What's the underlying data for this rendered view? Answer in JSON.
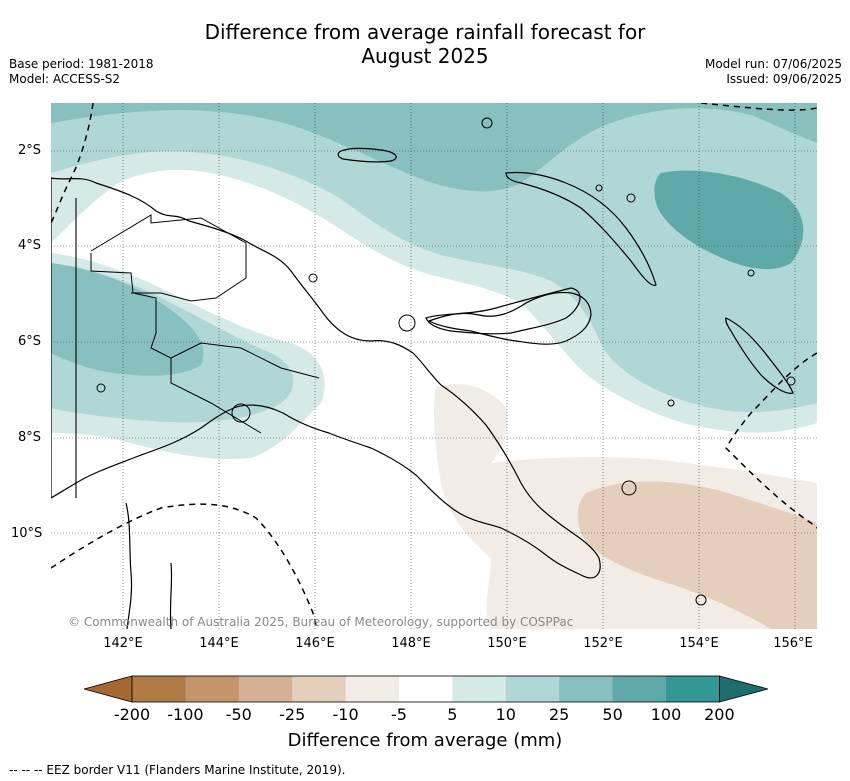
{
  "title": [
    "Difference from average rainfall forecast for",
    "August 2025"
  ],
  "info_left": [
    "Base period: 1981-2018",
    "Model: ACCESS-S2"
  ],
  "info_right": [
    "Model run: 07/06/2025",
    "Issued: 09/06/2025"
  ],
  "copyright": "© Commonwealth of Australia 2025, Bureau of Meteorology, supported by COSPPac",
  "lat_ticks": [
    "2°S",
    "4°S",
    "6°S",
    "8°S",
    "10°S"
  ],
  "lon_ticks": [
    "142°E",
    "144°E",
    "146°E",
    "148°E",
    "150°E",
    "152°E",
    "154°E",
    "156°E"
  ],
  "colorbar": {
    "label": "Difference from average (mm)",
    "ticks": [
      "-200",
      "-100",
      "-50",
      "-25",
      "-10",
      "-5",
      "5",
      "10",
      "25",
      "50",
      "100",
      "200"
    ],
    "colors": [
      "#a56830",
      "#b07a44",
      "#c4956a",
      "#d5b092",
      "#e4cfbd",
      "#f2ece6",
      "#ffffff",
      "#d5e9e7",
      "#afd7d5",
      "#87c0bf",
      "#5faaa9",
      "#339795",
      "#1f6e6d"
    ]
  },
  "eez_legend": "-- --  -- EEZ border V11 (Flanders Marine Institute, 2019).",
  "icons": [
    "eez-border-dashed-line",
    "coastline",
    "gridline-dotted"
  ]
}
